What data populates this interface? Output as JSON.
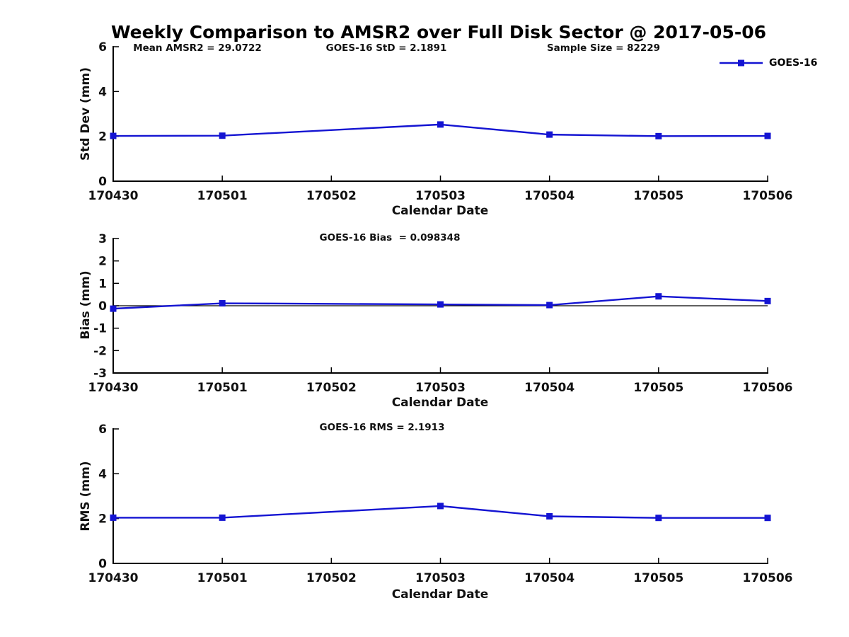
{
  "title": "Weekly Comparison to AMSR2 over Full Disk Sector @ 2017-05-06",
  "colors": {
    "line": "#1414D2",
    "text": "#111111",
    "axis": "#000000"
  },
  "legend": {
    "label": "GOES-16",
    "position": "top-right"
  },
  "chart_data": [
    {
      "type": "line",
      "title": "",
      "ylabel": "Std Dev (mm)",
      "xlabel": "Calendar Date",
      "ylim": [
        0,
        6
      ],
      "yticks": [
        0,
        2,
        4,
        6
      ],
      "grid": false,
      "categories": [
        "170430",
        "170501",
        "170502",
        "170503",
        "170504",
        "170505",
        "170506"
      ],
      "annotations": [
        "Mean AMSR2 = 29.0722",
        "GOES-16 StD = 2.1891",
        "Sample Size = 82229"
      ],
      "series": [
        {
          "name": "GOES-16",
          "x": [
            "170430",
            "170501",
            "170503",
            "170504",
            "170505",
            "170506"
          ],
          "values": [
            2.02,
            2.03,
            2.53,
            2.08,
            2.01,
            2.02
          ]
        }
      ]
    },
    {
      "type": "line",
      "title": "",
      "ylabel": "Bias (mm)",
      "xlabel": "Calendar Date",
      "ylim": [
        -3,
        3
      ],
      "yticks": [
        3,
        2,
        1,
        0,
        -1,
        -2,
        -3
      ],
      "zero_line": true,
      "grid": false,
      "categories": [
        "170430",
        "170501",
        "170502",
        "170503",
        "170504",
        "170505",
        "170506"
      ],
      "annotations": [
        "GOES-16 Bias  = 0.098348"
      ],
      "series": [
        {
          "name": "GOES-16",
          "x": [
            "170430",
            "170501",
            "170503",
            "170504",
            "170505",
            "170506"
          ],
          "values": [
            -0.13,
            0.11,
            0.06,
            0.03,
            0.42,
            0.21
          ]
        }
      ]
    },
    {
      "type": "line",
      "title": "",
      "ylabel": "RMS (mm)",
      "xlabel": "Calendar Date",
      "ylim": [
        0,
        6
      ],
      "yticks": [
        0,
        2,
        4,
        6
      ],
      "grid": false,
      "categories": [
        "170430",
        "170501",
        "170502",
        "170503",
        "170504",
        "170505",
        "170506"
      ],
      "annotations": [
        "GOES-16 RMS = 2.1913"
      ],
      "series": [
        {
          "name": "GOES-16",
          "x": [
            "170430",
            "170501",
            "170503",
            "170504",
            "170505",
            "170506"
          ],
          "values": [
            2.04,
            2.04,
            2.56,
            2.1,
            2.03,
            2.03
          ]
        }
      ]
    }
  ]
}
